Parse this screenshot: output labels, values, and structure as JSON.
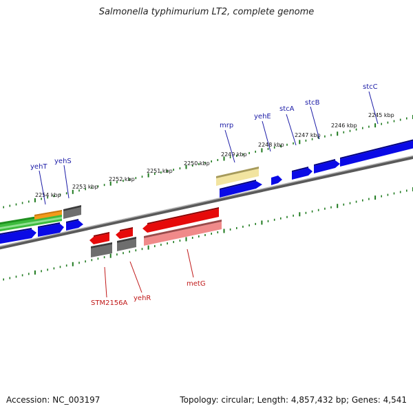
{
  "title": "Salmonella typhimurium LT2, complete genome",
  "footer": {
    "accession": "Accession: NC_003197",
    "topology": "Topology: circular; Length: 4,857,432 bp; Genes: 4,541"
  },
  "colors": {
    "backbone": "#7a7a7a",
    "ticks": "#1e7a1e",
    "forward_label": "#1a1aa6",
    "reverse_label": "#c01818",
    "cds_blue": "#0a0ae6",
    "cds_red": "#e60a0a",
    "cds_pink": "#f08a8a",
    "cds_gray": "#6e6e6e",
    "cds_green": "#3dbb3d",
    "cds_orange": "#f39a1a",
    "cds_yellow": "#f2e4a0"
  },
  "scale_labels": [
    "2254 kbp",
    "2253 kbp",
    "2252 kbp",
    "2251 kbp",
    "2250 kbp",
    "2249 kbp",
    "2248 kbp",
    "2247 kbp",
    "2246 kbp",
    "2245 kbp"
  ],
  "forward_genes": [
    "yehT",
    "yehS",
    "mrp",
    "yehE",
    "stcA",
    "stcB",
    "stcC"
  ],
  "reverse_genes": [
    "STM2156A",
    "yehR",
    "metG"
  ]
}
